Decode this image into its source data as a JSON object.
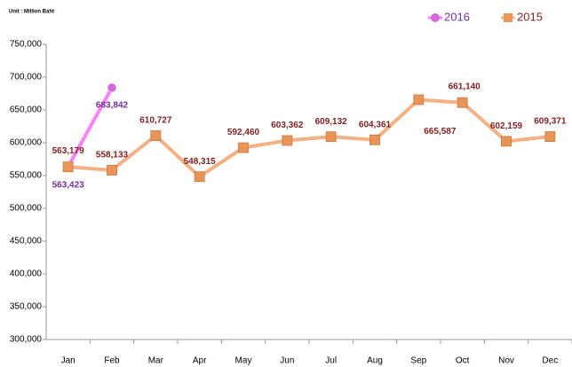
{
  "chart_data": {
    "type": "line",
    "unit_label": "Unit : Million Baht",
    "categories": [
      "Jan",
      "Feb",
      "Mar",
      "Apr",
      "May",
      "Jun",
      "Jul",
      "Aug",
      "Sep",
      "Oct",
      "Nov",
      "Dec"
    ],
    "series": [
      {
        "name": "2016",
        "color": "#ff80ff",
        "marker_color": "#d966d9",
        "label_color": "#7030a0",
        "values": [
          563423,
          683842,
          null,
          null,
          null,
          null,
          null,
          null,
          null,
          null,
          null,
          null
        ],
        "value_labels": [
          "563,423",
          "683,842",
          null,
          null,
          null,
          null,
          null,
          null,
          null,
          null,
          null,
          null
        ]
      },
      {
        "name": "2015",
        "color": "#f4b183",
        "marker_color": "#e8955a",
        "label_color": "#7f1f1f",
        "values": [
          563179,
          558133,
          610727,
          548315,
          592460,
          603362,
          609132,
          604361,
          665587,
          661140,
          602159,
          609371
        ],
        "value_labels": [
          "563,179",
          "558,133",
          "610,727",
          "548,315",
          "592,460",
          "603,362",
          "609,132",
          "604,361",
          "665,587",
          "661,140",
          "602,159",
          "609,371"
        ]
      }
    ],
    "ylim": [
      300000,
      750000
    ],
    "yticks": [
      {
        "value": 300000,
        "label": "300,000"
      },
      {
        "value": 350000,
        "label": "350,000"
      },
      {
        "value": 400000,
        "label": "400,000"
      },
      {
        "value": 450000,
        "label": "450,000"
      },
      {
        "value": 500000,
        "label": "500,000"
      },
      {
        "value": 550000,
        "label": "550,000"
      },
      {
        "value": 600000,
        "label": "600,000"
      },
      {
        "value": 650000,
        "label": "650,000"
      },
      {
        "value": 700000,
        "label": "700,000"
      },
      {
        "value": 750000,
        "label": "750,000"
      }
    ],
    "grid": false,
    "legend": "top-right"
  }
}
